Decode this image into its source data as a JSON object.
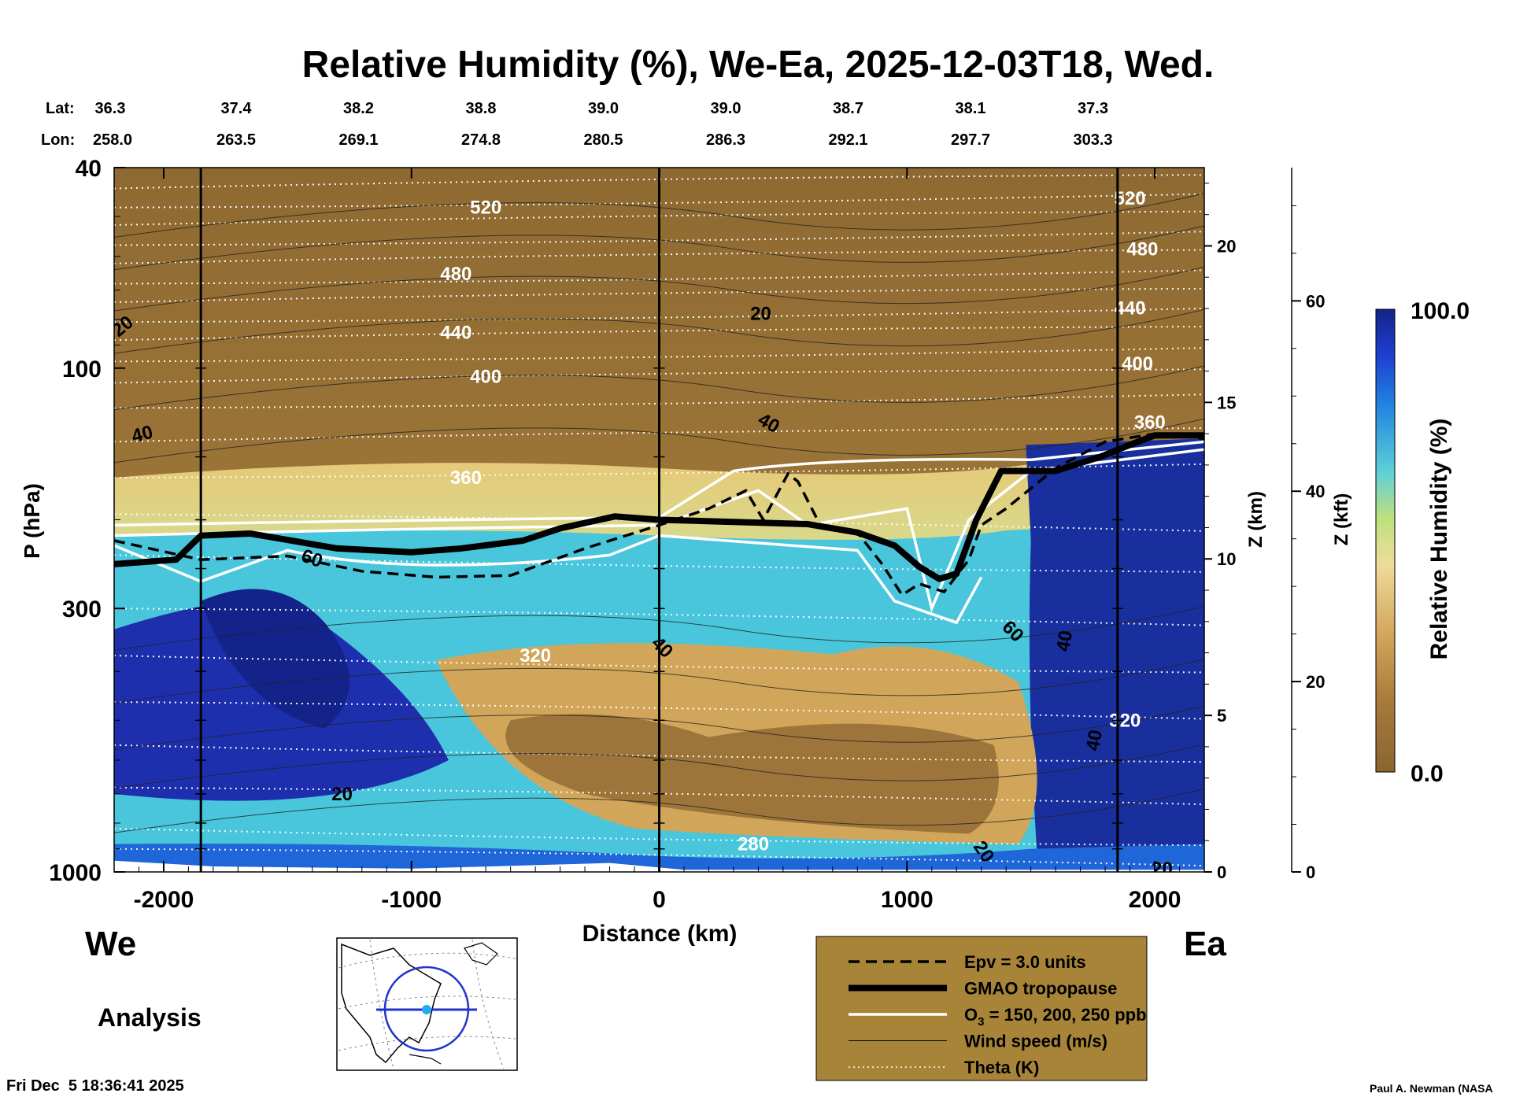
{
  "chart_data": {
    "type": "heatmap",
    "title": "Relative Humidity (%), We-Ea, 2025-12-03T18, Wed.",
    "xlabel": "Distance (km)",
    "ylabel": "P (hPa)",
    "y2label": "Z (km)",
    "y3label": "Z (kft)",
    "colorbar_label": "Relative Humidity (%)",
    "colorbar_range": [
      0.0,
      100.0
    ],
    "colorbar_max_label": "100.0",
    "colorbar_min_label": "0.0",
    "xlim": [
      -2200,
      2200
    ],
    "ylim_hpa": [
      1000,
      40
    ],
    "x_ticks": [
      -2000,
      -1000,
      0,
      1000,
      2000
    ],
    "x_tick_labels": [
      "-2000",
      "-1000",
      "0",
      "1000",
      "2000"
    ],
    "p_ticks": [
      40,
      100,
      300,
      1000
    ],
    "p_tick_labels": [
      "40",
      "100",
      "300",
      "1000"
    ],
    "z_km_ticks": [
      0,
      5,
      10,
      15,
      20
    ],
    "z_km_tick_labels": [
      "0",
      "5",
      "10",
      "15",
      "20"
    ],
    "z_kft_ticks": [
      0,
      20,
      40,
      60
    ],
    "z_kft_tick_labels": [
      "0",
      "20",
      "40",
      "60"
    ],
    "lat_label": "Lat:",
    "lon_label": "Lon:",
    "lat": [
      "36.3",
      "37.4",
      "38.2",
      "38.8",
      "39.0",
      "39.0",
      "38.7",
      "38.1",
      "37.3"
    ],
    "lon": [
      "258.0",
      "263.5",
      "269.1",
      "274.8",
      "280.5",
      "286.3",
      "292.1",
      "297.7",
      "303.3"
    ],
    "station_lines_km": [
      -1850,
      0,
      1850
    ],
    "tropopause": {
      "x": [
        -2200,
        -1950,
        -1850,
        -1650,
        -1300,
        -1000,
        -800,
        -550,
        -400,
        -180,
        0,
        300,
        600,
        800,
        950,
        1050,
        1130,
        1200,
        1280,
        1380,
        1600,
        1780,
        1900,
        2000,
        2200
      ],
      "p": [
        245,
        240,
        215,
        213,
        228,
        232,
        228,
        220,
        208,
        197,
        200,
        202,
        204,
        212,
        225,
        248,
        262,
        256,
        200,
        160,
        160,
        150,
        142,
        136,
        136
      ]
    },
    "epv_3": {
      "x": [
        -2200,
        -1850,
        -1500,
        -1200,
        -900,
        -600,
        -300,
        0,
        200,
        350,
        420,
        520,
        560,
        650,
        800,
        900,
        980,
        1050,
        1150,
        1250,
        1300,
        1400,
        1600,
        1800,
        2000,
        2200
      ],
      "p": [
        220,
        240,
        236,
        253,
        260,
        258,
        228,
        205,
        190,
        175,
        200,
        162,
        168,
        205,
        212,
        245,
        282,
        268,
        278,
        240,
        205,
        190,
        158,
        140,
        135,
        138
      ]
    },
    "theta_labels": [
      {
        "x": -700,
        "p": 48,
        "text": "520"
      },
      {
        "x": -820,
        "p": 65,
        "text": "480"
      },
      {
        "x": -820,
        "p": 85,
        "text": "440"
      },
      {
        "x": -700,
        "p": 104,
        "text": "400"
      },
      {
        "x": -780,
        "p": 165,
        "text": "360"
      },
      {
        "x": -500,
        "p": 372,
        "text": "320"
      },
      {
        "x": 380,
        "p": 880,
        "text": "280"
      },
      {
        "x": 1900,
        "p": 46,
        "text": "520"
      },
      {
        "x": 1950,
        "p": 58,
        "text": "480"
      },
      {
        "x": 1900,
        "p": 76,
        "text": "440"
      },
      {
        "x": 1930,
        "p": 98,
        "text": "400"
      },
      {
        "x": 1980,
        "p": 128,
        "text": "360"
      },
      {
        "x": 1880,
        "p": 500,
        "text": "320"
      }
    ],
    "wind_labels": [
      {
        "x": -2150,
        "p": 82,
        "text": "20",
        "rot": -40
      },
      {
        "x": -2080,
        "p": 135,
        "text": "40",
        "rot": -15
      },
      {
        "x": 410,
        "p": 78,
        "text": "20",
        "rot": 0
      },
      {
        "x": 430,
        "p": 128,
        "text": "40",
        "rot": 30
      },
      {
        "x": -1410,
        "p": 238,
        "text": "60",
        "rot": 20
      },
      {
        "x": -5,
        "p": 355,
        "text": "40",
        "rot": 45
      },
      {
        "x": 1410,
        "p": 330,
        "text": "60",
        "rot": 45
      },
      {
        "x": 1660,
        "p": 340,
        "text": "40",
        "rot": -80
      },
      {
        "x": 1780,
        "p": 535,
        "text": "40",
        "rot": -80
      },
      {
        "x": -1280,
        "p": 700,
        "text": "20",
        "rot": 0
      },
      {
        "x": 1290,
        "p": 900,
        "text": "20",
        "rot": 55
      },
      {
        "x": 2030,
        "p": 985,
        "text": "20",
        "rot": 0
      }
    ],
    "legend": [
      {
        "style": "dashed",
        "label": "Epv = 3.0 units"
      },
      {
        "style": "thick",
        "label": "GMAO tropopause"
      },
      {
        "style": "white",
        "label": "O",
        "sub": "3",
        "label2": " = 150, 200, 250 ppb"
      },
      {
        "style": "thin",
        "label": "Wind speed (m/s)"
      },
      {
        "style": "dotted",
        "label": "Theta (K)"
      }
    ]
  },
  "corner": {
    "west": "We",
    "east": "Ea",
    "analysis": "Analysis",
    "timestamp": "Fri Dec  5 18:36:41 2025",
    "credit": "Paul A. Newman (NASA"
  },
  "colors": {
    "brown_dark": "#8a6430",
    "brown": "#a77a3a",
    "tan": "#d4a75c",
    "cream": "#eedc9a",
    "green": "#bde07e",
    "cyan": "#5cd0d8",
    "blue": "#1f5fd8",
    "navy": "#14238a",
    "legend_bg": "#a88438"
  }
}
